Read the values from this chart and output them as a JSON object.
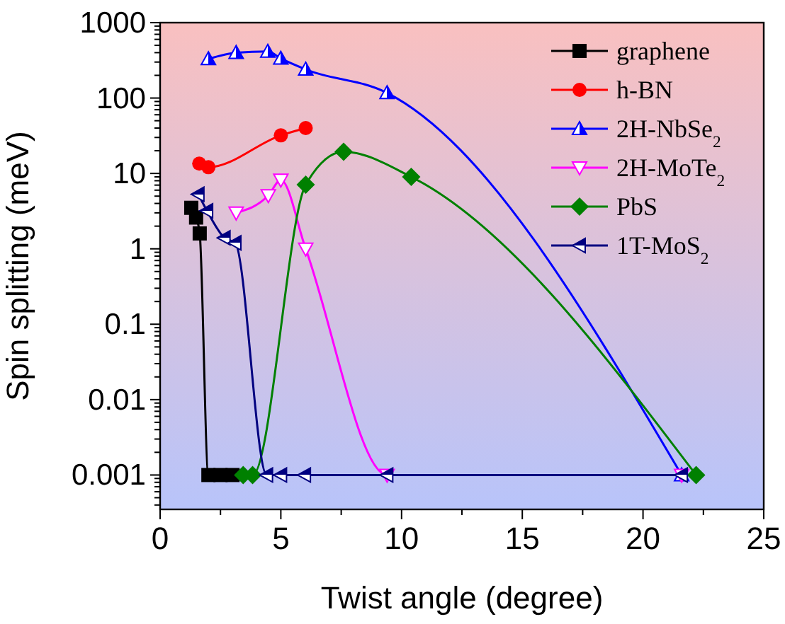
{
  "chart_data": {
    "type": "line",
    "xlabel": "Twist angle (degree)",
    "ylabel": "Spin splitting (meV)",
    "log": "y",
    "xlim": [
      0,
      25
    ],
    "xticks": [
      0,
      {
        "value": 2.5,
        "label": null
      },
      5,
      {
        "value": 7.5,
        "label": null
      },
      10,
      {
        "value": 12.5,
        "label": null
      },
      15,
      {
        "value": 17.5,
        "label": null
      },
      20,
      {
        "value": 22.5,
        "label": null
      },
      25
    ],
    "ylim": [
      0.00035,
      1000
    ],
    "yticks": [
      0.001,
      0.01,
      0.1,
      1,
      10,
      100,
      1000
    ],
    "legend": "top right",
    "grid": false,
    "series": [
      {
        "name": "graphene",
        "color": "#000000",
        "marker": "square",
        "x": [
          1.29,
          1.49,
          1.64,
          2.0,
          2.5,
          3.0
        ],
        "values": [
          3.5,
          2.6,
          1.6,
          0.001,
          0.001,
          0.001
        ]
      },
      {
        "name": "h-BN",
        "color": "#ff0000",
        "marker": "circle",
        "x": [
          1.62,
          2.0,
          5.0,
          6.03
        ],
        "values": [
          13.5,
          12.1,
          32,
          40
        ]
      },
      {
        "name": "2H-NbSe$_{2}$",
        "color": "#0000ff",
        "marker": "triangle",
        "x": [
          2.0,
          3.15,
          4.46,
          5.0,
          6.03,
          9.4,
          21.6
        ],
        "values": [
          330,
          400,
          415,
          335,
          240,
          117,
          0.001
        ]
      },
      {
        "name": "2H-MoTe$_{2}$",
        "color": "#ff00ff",
        "marker": "triangle-down",
        "x": [
          3.15,
          4.48,
          5.0,
          6.03,
          9.4,
          21.6
        ],
        "values": [
          3.0,
          5.1,
          8.2,
          1.0,
          0.001,
          0.001
        ]
      },
      {
        "name": "PbS",
        "color": "#008000",
        "marker": "diamond",
        "x": [
          3.44,
          3.83,
          6.03,
          7.6,
          10.4,
          22.2
        ],
        "values": [
          0.001,
          0.001,
          7.1,
          19.4,
          9.0,
          0.001
        ]
      },
      {
        "name": "1T-MoS$_{2}$",
        "color": "#000080",
        "marker": "triangle-left",
        "x": [
          1.58,
          1.94,
          2.66,
          3.11,
          4.42,
          5.0,
          5.99,
          9.4,
          21.6
        ],
        "values": [
          5.3,
          3.2,
          1.4,
          1.2,
          0.001,
          0.001,
          0.001,
          0.001,
          0.001
        ]
      }
    ]
  }
}
